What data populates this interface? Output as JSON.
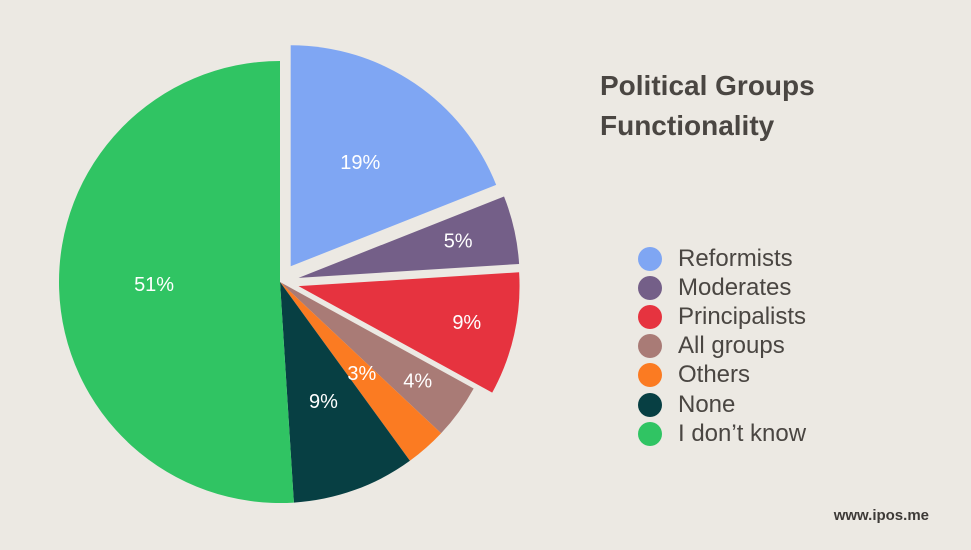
{
  "chart_data": {
    "type": "pie",
    "title_line1": "Political Groups",
    "title_line2": "Functionality",
    "start_angle_deg": 0,
    "direction": "clockwise",
    "slices": [
      {
        "label": "Reformists",
        "value": 19,
        "display": "19%",
        "color": "#7FA6F3",
        "exploded": true
      },
      {
        "label": "Moderates",
        "value": 5,
        "display": "5%",
        "color": "#745F88",
        "exploded": true
      },
      {
        "label": "Principalists",
        "value": 9,
        "display": "9%",
        "color": "#E6333F",
        "exploded": true
      },
      {
        "label": "All groups",
        "value": 4,
        "display": "4%",
        "color": "#A97B76",
        "exploded": false
      },
      {
        "label": "Others",
        "value": 3,
        "display": "3%",
        "color": "#FB7B22",
        "exploded": false
      },
      {
        "label": "None",
        "value": 9,
        "display": "9%",
        "color": "#073F43",
        "exploded": false
      },
      {
        "label": "I don’t know",
        "value": 51,
        "display": "51%",
        "color": "#30C463",
        "exploded": false
      }
    ],
    "legend_position": "right"
  },
  "footer": {
    "source": "www.ipos.me"
  }
}
